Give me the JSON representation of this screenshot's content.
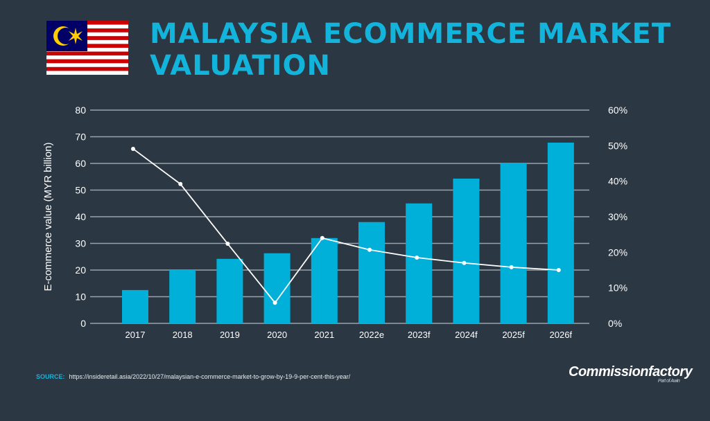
{
  "header": {
    "title": "MALAYSIA ECOMMERCE MARKET VALUATION",
    "flag": "malaysia-flag"
  },
  "colors": {
    "background": "#2b3743",
    "bar": "#00b0d8",
    "line": "#ffffff",
    "title": "#13b4dc",
    "grid": "#9aa3ab"
  },
  "chart_data": {
    "type": "bar",
    "title": "",
    "categories": [
      "2017",
      "2018",
      "2019",
      "2020",
      "2021",
      "2022e",
      "2023f",
      "2024f",
      "2025f",
      "2026f"
    ],
    "ylabel": "E-commerce value (MYR billion)",
    "ylim": [
      0,
      80
    ],
    "yticks": [
      "0",
      "10",
      "20",
      "30",
      "40",
      "50",
      "60",
      "70",
      "80"
    ],
    "y2lim": [
      0,
      60
    ],
    "y2ticks": [
      "0%",
      "10%",
      "20%",
      "30%",
      "40%",
      "50%",
      "60%"
    ],
    "grid": true,
    "series": [
      {
        "type": "bar",
        "axis": "left",
        "values": [
          12.5,
          20,
          24.2,
          26.3,
          32,
          38,
          45,
          54.3,
          60,
          67.8
        ]
      },
      {
        "type": "line",
        "axis": "right",
        "values": [
          49.1,
          39.2,
          22.4,
          5.8,
          24,
          20.7,
          18.5,
          17,
          15.8,
          15
        ]
      }
    ]
  },
  "footer": {
    "source_label": "SOURCE:",
    "source_url": "https://insideretail.asia/2022/10/27/malaysian-e-commerce-market-to-grow-by-19-9-per-cent-this-year/",
    "logo": "Commissionfactory",
    "logo_sub": "Part of Awin"
  }
}
